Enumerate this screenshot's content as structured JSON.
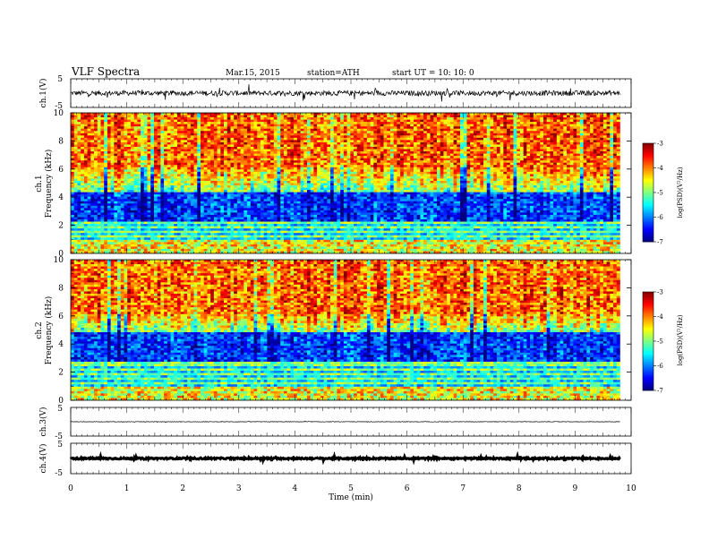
{
  "header": {
    "title": "VLF  Spectra",
    "date": "Mar.15, 2015",
    "station": "station=ATH",
    "start": "start  UT  =    10: 10: 0"
  },
  "chart_data": {
    "type": "heatmap",
    "x_axis": {
      "label": "Time  (min)",
      "range": [
        0,
        10
      ],
      "ticks": [
        "0",
        "1",
        "2",
        "3",
        "4",
        "5",
        "6",
        "7",
        "8",
        "9",
        "10"
      ],
      "data_end": 9.8
    },
    "panels": [
      {
        "id": "ch1_wave",
        "kind": "waveform",
        "ylabel": "ch.1(V)",
        "ylim": [
          -5,
          5
        ],
        "ticks": [
          "5",
          "-5"
        ],
        "baseline": 0,
        "noise_amplitude": 1.6
      },
      {
        "id": "ch1_spec",
        "kind": "spectrogram",
        "ylabel_channel": "ch.1",
        "ylabel": "Frequency  (kHz)",
        "ylim": [
          0,
          10
        ],
        "ticks": [
          "0",
          "2",
          "4",
          "6",
          "8",
          "10"
        ],
        "colorbar": {
          "label": "log(PSD)(V²/Hz)",
          "range": [
            -7,
            -3
          ],
          "ticks": [
            "-3",
            "-4",
            "-5",
            "-6",
            "-7"
          ]
        }
      },
      {
        "id": "ch2_spec",
        "kind": "spectrogram",
        "ylabel_channel": "ch.2",
        "ylabel": "Frequency  (kHz)",
        "ylim": [
          0,
          10
        ],
        "ticks": [
          "0",
          "2",
          "4",
          "6",
          "8",
          "10"
        ],
        "colorbar": {
          "label": "log(PSD)(V²/Hz)",
          "range": [
            -7,
            -3
          ],
          "ticks": [
            "-3",
            "-4",
            "-5",
            "-6",
            "-7"
          ]
        }
      },
      {
        "id": "ch3_wave",
        "kind": "waveform",
        "ylabel": "ch.3(V)",
        "ylim": [
          -5,
          5
        ],
        "ticks": [
          "5",
          "-5"
        ],
        "baseline": 0,
        "noise_amplitude": 0.15
      },
      {
        "id": "ch4_wave",
        "kind": "waveform",
        "ylabel": "ch.4(V)",
        "ylim": [
          -5,
          5
        ],
        "ticks": [
          "5",
          "-5"
        ],
        "baseline": 0,
        "noise_amplitude": 0.45
      }
    ]
  }
}
